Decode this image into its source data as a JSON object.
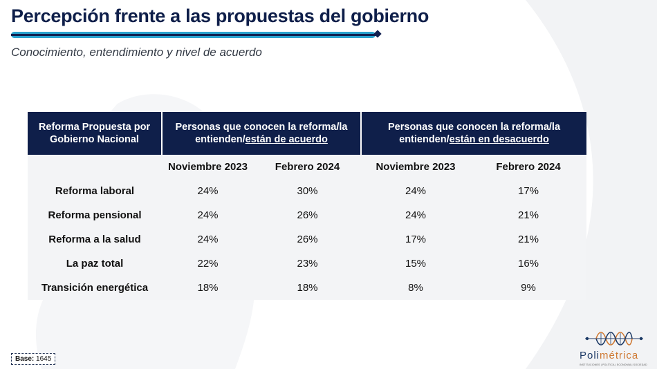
{
  "header": {
    "title": "Percepción frente a las propuestas del gobierno",
    "subtitle": "Conocimiento, entendimiento y nivel de acuerdo"
  },
  "table": {
    "col1_header": "Reforma Propuesta por Gobierno Nacional",
    "group1": {
      "text": "Personas que conocen la reforma/la entienden/",
      "underlined": "están de acuerdo"
    },
    "group2": {
      "text": "Personas que conocen la reforma/la entienden/",
      "underlined": "están en desacuerdo"
    },
    "periods": [
      "Noviembre 2023",
      "Febrero 2024",
      "Noviembre 2023",
      "Febrero 2024"
    ],
    "rows": [
      {
        "label": "Reforma laboral",
        "values": [
          "24%",
          "30%",
          "24%",
          "17%"
        ]
      },
      {
        "label": "Reforma pensional",
        "values": [
          "24%",
          "26%",
          "24%",
          "21%"
        ]
      },
      {
        "label": "Reforma a la salud",
        "values": [
          "24%",
          "26%",
          "17%",
          "21%"
        ]
      },
      {
        "label": "La paz total",
        "values": [
          "22%",
          "23%",
          "15%",
          "16%"
        ]
      },
      {
        "label": "Transición energética",
        "values": [
          "18%",
          "18%",
          "8%",
          "9%"
        ]
      }
    ]
  },
  "footer": {
    "base_label": "Base:",
    "base_value": "1645",
    "logo_text_1": "Poli",
    "logo_text_2": "métrica",
    "logo_tagline": "INSTITUCIONES | POLÍTICA | ECONOMÍA | SOCIEDAD"
  },
  "colors": {
    "navy": "#0f1f4a",
    "accent_blue": "#2aa3cf",
    "accent_orange": "#cf7a34",
    "cell_bg": "#f3f4f6"
  }
}
